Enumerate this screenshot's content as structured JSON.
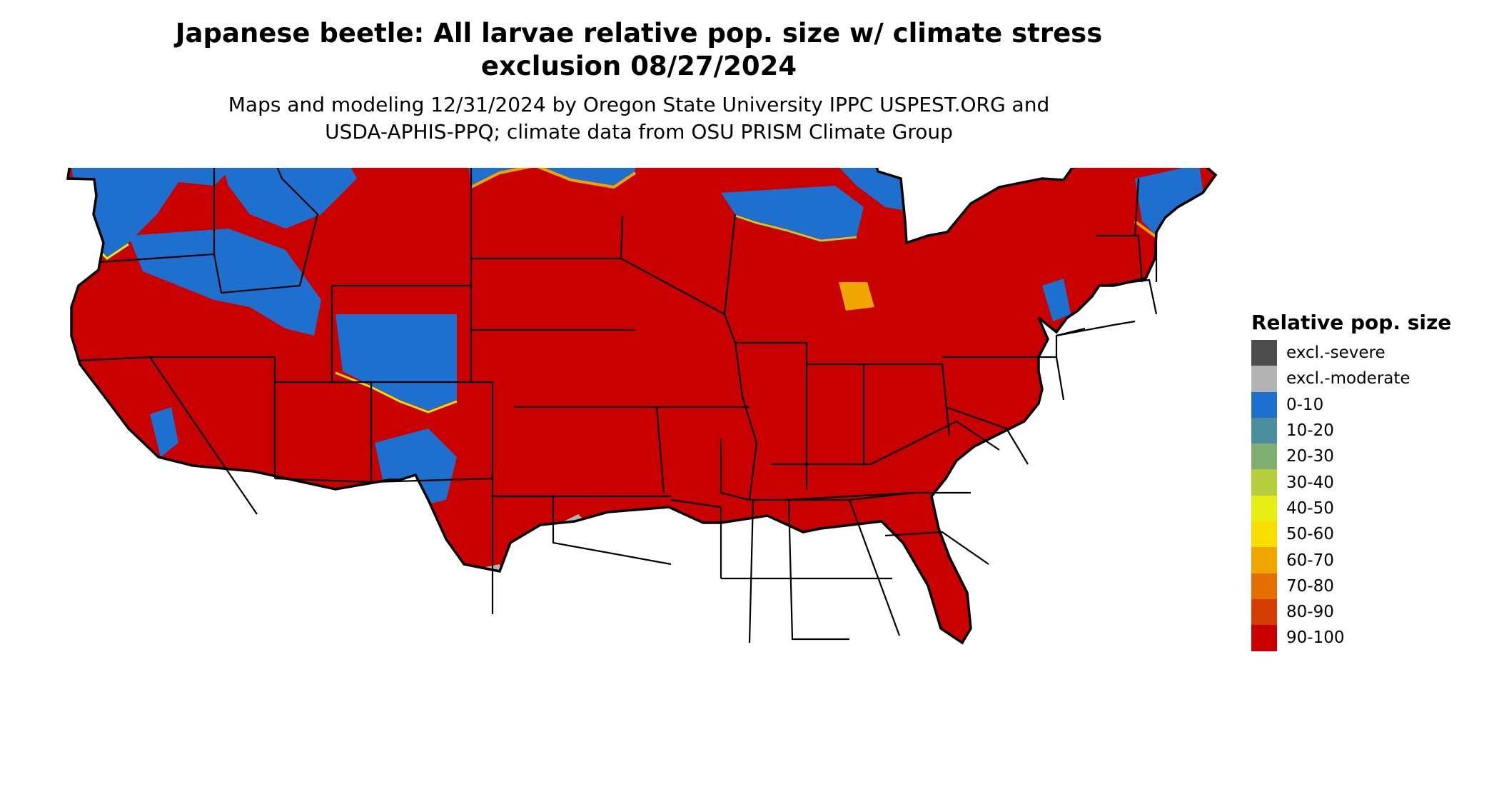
{
  "title_line1": "Japanese beetle: All larvae relative pop. size w/ climate stress",
  "title_line2": "exclusion 08/27/2024",
  "subtitle_line1": "Maps and modeling 12/31/2024 by Oregon State University IPPC USPEST.ORG and",
  "subtitle_line2": "USDA-APHIS-PPQ; climate data from OSU PRISM Climate Group",
  "legend": {
    "title": "Relative pop. size",
    "items": [
      {
        "label": "excl.-severe",
        "color": "#4d4d4d"
      },
      {
        "label": "excl.-moderate",
        "color": "#b3b3b3"
      },
      {
        "label": "0-10",
        "color": "#1e6fce"
      },
      {
        "label": "10-20",
        "color": "#4b8f9e"
      },
      {
        "label": "20-30",
        "color": "#80ae70"
      },
      {
        "label": "30-40",
        "color": "#b6cd3e"
      },
      {
        "label": "40-50",
        "color": "#e6ee14"
      },
      {
        "label": "50-60",
        "color": "#f8df00"
      },
      {
        "label": "60-70",
        "color": "#f0a500"
      },
      {
        "label": "70-80",
        "color": "#e56e00"
      },
      {
        "label": "80-90",
        "color": "#d53c00"
      },
      {
        "label": "90-100",
        "color": "#c90000"
      }
    ]
  }
}
